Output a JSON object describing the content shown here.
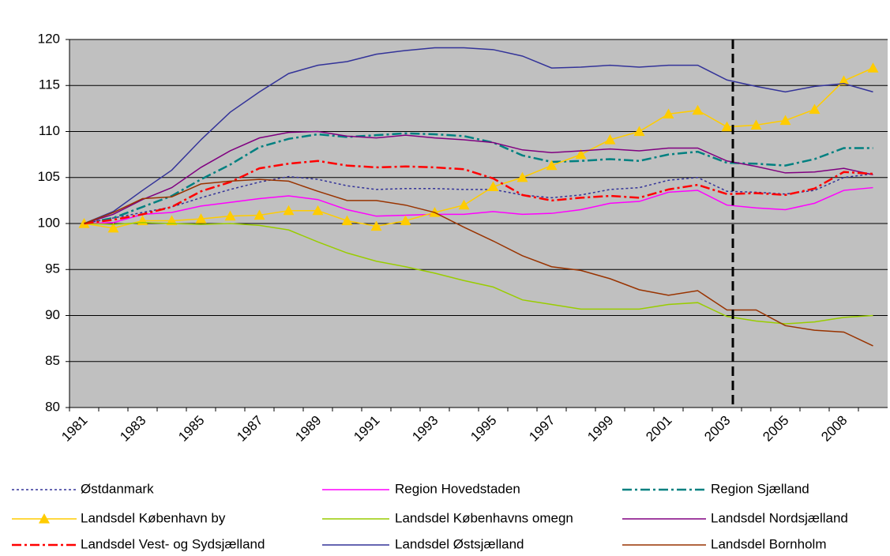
{
  "chart_data": {
    "type": "line",
    "categories": [
      "1981",
      null,
      "1983",
      null,
      "1985",
      null,
      "1987",
      null,
      "1989",
      null,
      "1991",
      null,
      "1993",
      null,
      "1995",
      null,
      "1997",
      null,
      "1999",
      null,
      "2001",
      null,
      "2003",
      null,
      "2005",
      null,
      "2008",
      null
    ],
    "ylim": [
      80,
      120
    ],
    "yticks": [
      80,
      85,
      90,
      95,
      100,
      105,
      110,
      115,
      120
    ],
    "grid": true,
    "series": [
      {
        "name": "Østdanmark",
        "color": "#333399",
        "dash": "dot",
        "values": [
          100,
          100.6,
          101.2,
          101.8,
          102.8,
          103.7,
          104.5,
          105.1,
          104.8,
          104.1,
          103.7,
          103.8,
          103.8,
          103.7,
          103.7,
          103.1,
          102.8,
          103.1,
          103.7,
          103.9,
          104.7,
          105,
          103.5,
          103.4,
          103.2,
          103.6,
          105,
          105.4
        ]
      },
      {
        "name": "Region Hovedstaden",
        "color": "#ff00ff",
        "dash": "solid",
        "values": [
          100,
          100.1,
          101,
          101.2,
          101.9,
          102.3,
          102.7,
          103,
          102.6,
          101.5,
          100.8,
          100.9,
          101,
          101,
          101.3,
          101,
          101.1,
          101.5,
          102.2,
          102.4,
          103.4,
          103.6,
          102,
          101.7,
          101.5,
          102.2,
          103.6,
          103.9
        ]
      },
      {
        "name": "Region Sjælland",
        "color": "#008080",
        "dash": "dashdot",
        "values": [
          100,
          100.6,
          101.8,
          103,
          104.8,
          106.4,
          108.3,
          109.2,
          109.7,
          109.4,
          109.6,
          109.8,
          109.7,
          109.5,
          108.8,
          107.4,
          106.7,
          106.8,
          107,
          106.8,
          107.5,
          107.8,
          106.6,
          106.5,
          106.3,
          107,
          108.2,
          108.2
        ]
      },
      {
        "name": "Landsdel København by",
        "color": "#ffcc00",
        "dash": "solid",
        "marker": "triangle",
        "values": [
          100,
          99.5,
          100.3,
          100.3,
          100.5,
          100.8,
          100.9,
          101.4,
          101.4,
          100.3,
          99.7,
          100.3,
          101.2,
          102,
          104,
          105,
          106.3,
          107.5,
          109.1,
          110,
          111.9,
          112.3,
          110.5,
          110.7,
          111.2,
          112.4,
          115.5,
          116.9
        ]
      },
      {
        "name": "Landsdel Københavns omegn",
        "color": "#99cc00",
        "dash": "solid",
        "values": [
          100,
          99.9,
          100.1,
          100,
          99.9,
          100,
          99.8,
          99.3,
          98,
          96.8,
          95.9,
          95.3,
          94.6,
          93.8,
          93.1,
          91.7,
          91.2,
          90.7,
          90.7,
          90.7,
          91.2,
          91.4,
          89.9,
          89.4,
          89.1,
          89.3,
          89.8,
          90
        ]
      },
      {
        "name": "Landsdel Nordsjælland",
        "color": "#800080",
        "dash": "solid",
        "values": [
          100,
          101,
          102.6,
          103.9,
          106.1,
          107.9,
          109.3,
          109.9,
          110,
          109.5,
          109.3,
          109.6,
          109.3,
          109.1,
          108.8,
          108,
          107.7,
          107.9,
          108.1,
          107.9,
          108.2,
          108.2,
          106.8,
          106.2,
          105.5,
          105.6,
          106,
          105.3
        ]
      },
      {
        "name": "Landsdel Vest- og Sydsjælland",
        "color": "#ff0000",
        "dash": "dashdot",
        "values": [
          100,
          100.4,
          101,
          101.8,
          103.5,
          104.5,
          106,
          106.5,
          106.8,
          106.3,
          106.1,
          106.2,
          106.1,
          105.9,
          104.9,
          103.1,
          102.5,
          102.8,
          103,
          102.8,
          103.7,
          104.2,
          103.2,
          103.3,
          103.1,
          103.8,
          105.6,
          105.4
        ]
      },
      {
        "name": "Landsdel Østsjælland",
        "color": "#333399",
        "dash": "solid",
        "values": [
          100,
          101.3,
          103.6,
          105.8,
          109.1,
          112.1,
          114.3,
          116.3,
          117.2,
          117.6,
          118.4,
          118.8,
          119.1,
          119.1,
          118.9,
          118.2,
          116.9,
          117,
          117.2,
          117,
          117.2,
          117.2,
          115.6,
          114.9,
          114.3,
          114.9,
          115.2,
          114.3
        ]
      },
      {
        "name": "Landsdel Bornholm",
        "color": "#993300",
        "dash": "solid",
        "values": [
          100,
          101.2,
          102.7,
          102.9,
          104.3,
          104.6,
          104.8,
          104.6,
          103.5,
          102.5,
          102.5,
          102,
          101.2,
          99.6,
          98.1,
          96.5,
          95.3,
          94.9,
          94,
          92.8,
          92.2,
          92.7,
          90.6,
          90.6,
          88.9,
          88.4,
          88.2,
          86.7
        ]
      }
    ]
  }
}
